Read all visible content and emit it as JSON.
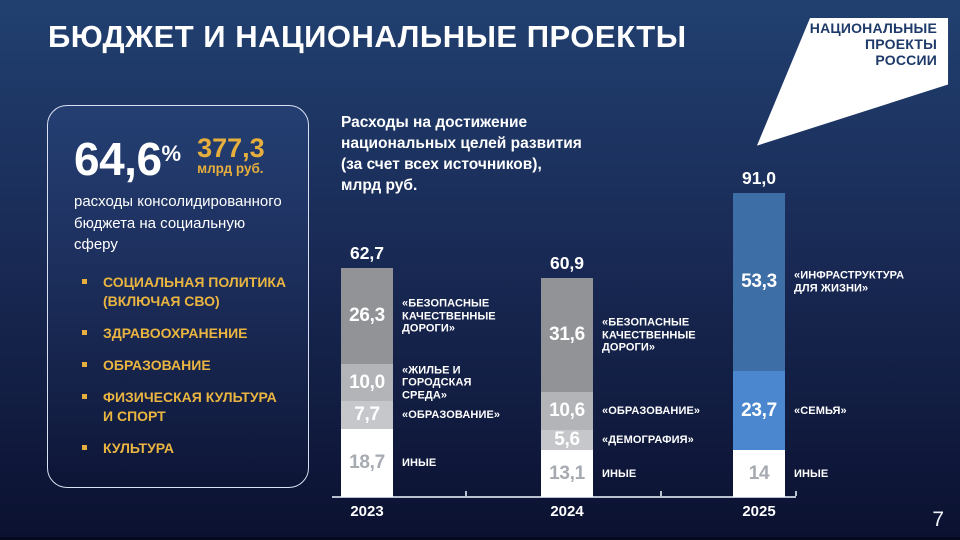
{
  "slide": {
    "title": "БЮДЖЕТ И НАЦИОНАЛЬНЫЕ ПРОЕКТЫ",
    "page_number": "7"
  },
  "logo": {
    "text": "НАЦИОНАЛЬНЫЕ\nПРОЕКТЫ\nРОССИИ"
  },
  "panel": {
    "stat_value": "64,6",
    "stat_unit": "%",
    "amount_value": "377,3",
    "amount_unit": "млрд руб.",
    "description": "расходы консолидированного бюджета на социальную сферу",
    "bullets": [
      "СОЦИАЛЬНАЯ ПОЛИТИКА (ВКЛЮЧАЯ СВО)",
      "ЗДРАВООХРАНЕНИЕ",
      "ОБРАЗОВАНИЕ",
      "ФИЗИЧЕСКАЯ КУЛЬТУРА И СПОРТ",
      "КУЛЬТУРА"
    ]
  },
  "chart_data": {
    "type": "bar",
    "stacked": true,
    "title": "Расходы на достижение\nнациональных целей развития\n(за счет всех источников),\nмлрд руб.",
    "ylabel": "млрд руб.",
    "legend_position": "right-of-segments",
    "grid": false,
    "categories": [
      "2023",
      "2024",
      "2025"
    ],
    "bars": [
      {
        "year": "2023",
        "total": 62.7,
        "total_label": "62,7",
        "segments": [
          {
            "value": 26.3,
            "label": "26,3",
            "name": "«БЕЗОПАСНЫЕ\nКАЧЕСТВЕННЫЕ\nДОРОГИ»",
            "color": "#919396",
            "value_color": "#ffffff"
          },
          {
            "value": 10.0,
            "label": "10,0",
            "name": "«ЖИЛЬЕ И\nГОРОДСКАЯ СРЕДА»",
            "color": "#b2b4b7",
            "value_color": "#ffffff"
          },
          {
            "value": 7.7,
            "label": "7,7",
            "name": "«ОБРАЗОВАНИЕ»",
            "color": "#c6c7ca",
            "value_color": "#ffffff"
          },
          {
            "value": 18.7,
            "label": "18,7",
            "name": "ИНЫЕ",
            "color": "#ffffff",
            "value_color": "#a6aab1"
          }
        ]
      },
      {
        "year": "2024",
        "total": 60.9,
        "total_label": "60,9",
        "segments": [
          {
            "value": 31.6,
            "label": "31,6",
            "name": "«БЕЗОПАСНЫЕ\nКАЧЕСТВЕННЫЕ\nДОРОГИ»",
            "color": "#919396",
            "value_color": "#ffffff"
          },
          {
            "value": 10.6,
            "label": "10,6",
            "name": "«ОБРАЗОВАНИЕ»",
            "color": "#b2b4b7",
            "value_color": "#ffffff"
          },
          {
            "value": 5.6,
            "label": "5,6",
            "name": "«ДЕМОГРАФИЯ»",
            "color": "#c6c7ca",
            "value_color": "#ffffff"
          },
          {
            "value": 13.1,
            "label": "13,1",
            "name": "ИНЫЕ",
            "color": "#ffffff",
            "value_color": "#a6aab1"
          }
        ]
      },
      {
        "year": "2025",
        "total": 91.0,
        "total_label": "91,0",
        "segments": [
          {
            "value": 53.3,
            "label": "53,3",
            "name": "«ИНФРАСТРУКТУРА\nДЛЯ ЖИЗНИ»",
            "color": "#3d6ea6",
            "value_color": "#ffffff"
          },
          {
            "value": 23.7,
            "label": "23,7",
            "name": "«СЕМЬЯ»",
            "color": "#4b87cf",
            "value_color": "#ffffff"
          },
          {
            "value": 14.0,
            "label": "14",
            "name": "ИНЫЕ",
            "color": "#ffffff",
            "value_color": "#a6aab1"
          }
        ]
      }
    ],
    "colors": {
      "accent_gold": "#e6ae3c",
      "background_top": "#214070",
      "background_bottom": "#0b1130",
      "axis": "#b9c0cf"
    }
  }
}
